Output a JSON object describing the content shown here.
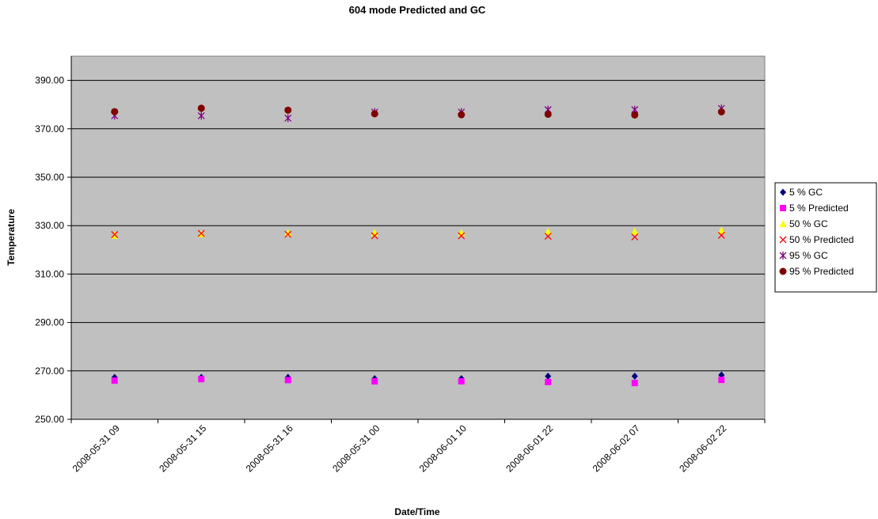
{
  "chart_data": {
    "type": "scatter",
    "title": "604 mode Predicted and GC",
    "xlabel": "Date/Time",
    "ylabel": "Temperature",
    "ylim": [
      250,
      400
    ],
    "ytick_step": 20,
    "grid": true,
    "legend_position": "right",
    "plot_background": "#c0c0c0",
    "categories": [
      "2008-05-31  09",
      "2008-05-31  15",
      "2008-05-31  16",
      "2008-05-31  00",
      "2008-06-01  10",
      "2008-06-01  22",
      "2008-06-02  07",
      "2008-06-02  22"
    ],
    "series": [
      {
        "name": "5 % GC",
        "marker": "diamond",
        "color": "#000080",
        "values": [
          267.3,
          267.3,
          267.3,
          266.8,
          266.8,
          267.8,
          267.8,
          268.3
        ]
      },
      {
        "name": "5 % Predicted",
        "marker": "square",
        "color": "#ff00ff",
        "values": [
          266.0,
          266.6,
          266.2,
          265.7,
          265.7,
          265.4,
          265.0,
          266.3
        ]
      },
      {
        "name": "50 % GC",
        "marker": "triangle",
        "color": "#ffff00",
        "values": [
          325.9,
          326.5,
          327.0,
          327.0,
          327.0,
          327.5,
          327.5,
          328.0
        ]
      },
      {
        "name": "50 % Predicted",
        "marker": "x",
        "color": "#ff0000",
        "values": [
          326.3,
          326.8,
          326.4,
          325.8,
          325.8,
          325.6,
          325.3,
          326.0
        ]
      },
      {
        "name": "95 % GC",
        "marker": "asterisk",
        "color": "#800080",
        "values": [
          375.4,
          375.4,
          374.4,
          376.9,
          376.9,
          377.9,
          377.9,
          378.4
        ]
      },
      {
        "name": "95 % Predicted",
        "marker": "circle",
        "color": "#800000",
        "values": [
          377.1,
          378.5,
          377.7,
          376.2,
          375.8,
          376.0,
          375.7,
          377.0
        ]
      }
    ]
  }
}
